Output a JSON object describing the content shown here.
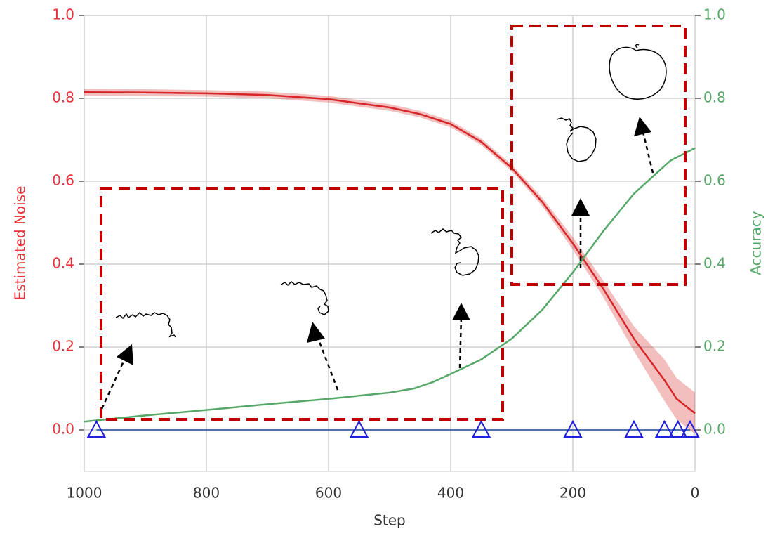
{
  "chart_data": {
    "type": "line",
    "xlabel": "Step",
    "ylabel": "Estimated Noise",
    "y2label": "Accuracy",
    "xlim": [
      1000,
      0
    ],
    "ylim": [
      -0.1,
      1.0
    ],
    "y2lim": [
      -0.1,
      1.0
    ],
    "xticks": [
      1000,
      800,
      600,
      400,
      200,
      0
    ],
    "yticks": [
      {
        "value": 0,
        "label": "0.0"
      },
      0.2,
      0.4,
      0.6,
      0.8,
      {
        "value": 1,
        "label": "1.0"
      }
    ],
    "y2ticks": [
      {
        "value": 0,
        "label": "0.0"
      },
      0.2,
      0.4,
      0.6,
      0.8,
      {
        "value": 1,
        "label": "1.0"
      }
    ],
    "grid": true,
    "series": [
      {
        "color": "#d62728",
        "axis": "y",
        "x": [
          1000,
          900,
          800,
          700,
          600,
          500,
          450,
          400,
          350,
          300,
          250,
          200,
          150,
          100,
          50,
          30,
          0
        ],
        "values": [
          0.815,
          0.814,
          0.812,
          0.808,
          0.798,
          0.778,
          0.762,
          0.738,
          0.695,
          0.632,
          0.55,
          0.45,
          0.34,
          0.22,
          0.12,
          0.075,
          0.04
        ],
        "lower": [
          0.807,
          0.806,
          0.804,
          0.8,
          0.79,
          0.77,
          0.754,
          0.73,
          0.687,
          0.624,
          0.54,
          0.435,
          0.32,
          0.19,
          0.07,
          0.025,
          -0.01
        ],
        "upper": [
          0.823,
          0.822,
          0.82,
          0.816,
          0.806,
          0.786,
          0.77,
          0.746,
          0.703,
          0.64,
          0.56,
          0.465,
          0.36,
          0.25,
          0.17,
          0.125,
          0.09
        ]
      },
      {
        "color": "#55a868",
        "axis": "y2",
        "x": [
          1000,
          900,
          800,
          700,
          600,
          500,
          460,
          430,
          400,
          350,
          300,
          250,
          200,
          150,
          100,
          70,
          40,
          0
        ],
        "values": [
          0.02,
          0.035,
          0.048,
          0.062,
          0.075,
          0.09,
          0.1,
          0.115,
          0.135,
          0.17,
          0.22,
          0.29,
          0.38,
          0.48,
          0.57,
          0.61,
          0.65,
          0.68
        ]
      }
    ],
    "markers": {
      "color": "#2222dd",
      "line_color": "#4c72b0",
      "x": [
        980,
        550,
        350,
        200,
        100,
        50,
        28,
        8
      ],
      "values": [
        0,
        0,
        0,
        0,
        0,
        0,
        0,
        0
      ]
    }
  }
}
